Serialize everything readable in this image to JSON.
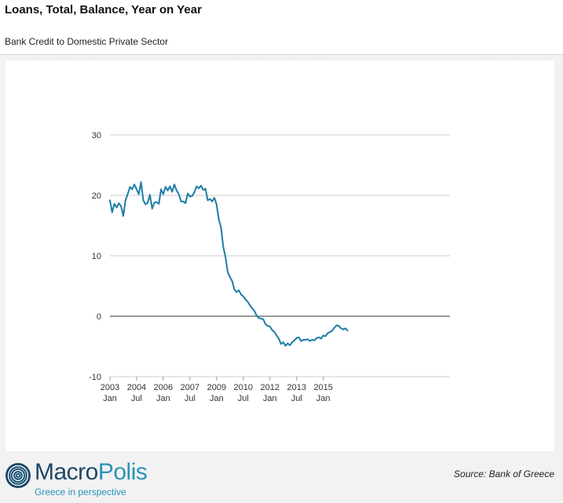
{
  "header": {
    "title": "Loans, Total, Balance, Year on Year",
    "subtitle": "Bank Credit to Domestic Private Sector"
  },
  "footer": {
    "brand_first": "Macro",
    "brand_second": "Polis",
    "tagline": "Greece in perspective",
    "source": "Source: Bank of Greece"
  },
  "colors": {
    "series": "#1f7ca6",
    "grid": "#cccccc",
    "zero_line": "#333333",
    "brand_dark": "#1e4866",
    "brand_light": "#2a93b8"
  },
  "chart_data": {
    "type": "line",
    "title": "",
    "xlabel": "",
    "ylabel": "",
    "ylim": [
      -10,
      30
    ],
    "yticks": [
      30,
      20,
      10,
      0,
      -10
    ],
    "xlim": [
      "2003-01",
      "2015-10"
    ],
    "grid": true,
    "legend": false,
    "x_ticks": [
      {
        "date": "2003-01",
        "line1": "2003",
        "line2": "Jan"
      },
      {
        "date": "2004-01",
        "line1": "2004",
        "line2": "Jul"
      },
      {
        "date": "2005-01",
        "line1": "2006",
        "line2": "Jan"
      },
      {
        "date": "2006-01",
        "line1": "2007",
        "line2": "Jul"
      },
      {
        "date": "2007-01",
        "line1": "2009",
        "line2": "Jan"
      },
      {
        "date": "2008-01",
        "line1": "2010",
        "line2": "Jul"
      },
      {
        "date": "2009-01",
        "line1": "2012",
        "line2": "Jan"
      },
      {
        "date": "2010-01",
        "line1": "2013",
        "line2": "Jul"
      },
      {
        "date": "2011-01",
        "line1": "2015",
        "line2": "Jan"
      }
    ],
    "series": [
      {
        "name": "",
        "points": [
          [
            "2003-01",
            19.2
          ],
          [
            "2003-02",
            17.2
          ],
          [
            "2003-03",
            18.6
          ],
          [
            "2003-04",
            18.0
          ],
          [
            "2003-05",
            18.7
          ],
          [
            "2003-06",
            18.2
          ],
          [
            "2003-07",
            16.6
          ],
          [
            "2003-08",
            19.2
          ],
          [
            "2003-09",
            20.2
          ],
          [
            "2003-10",
            21.4
          ],
          [
            "2003-11",
            21.0
          ],
          [
            "2003-12",
            21.8
          ],
          [
            "2004-01",
            21.0
          ],
          [
            "2004-02",
            20.2
          ],
          [
            "2004-03",
            22.2
          ],
          [
            "2004-04",
            19.2
          ],
          [
            "2004-05",
            18.5
          ],
          [
            "2004-06",
            18.8
          ],
          [
            "2004-07",
            20.1
          ],
          [
            "2004-08",
            17.8
          ],
          [
            "2004-09",
            18.8
          ],
          [
            "2004-10",
            18.9
          ],
          [
            "2004-11",
            18.6
          ],
          [
            "2004-12",
            21.0
          ],
          [
            "2005-01",
            20.2
          ],
          [
            "2005-02",
            21.4
          ],
          [
            "2005-03",
            20.8
          ],
          [
            "2005-04",
            21.5
          ],
          [
            "2005-05",
            20.6
          ],
          [
            "2005-06",
            21.8
          ],
          [
            "2005-07",
            20.8
          ],
          [
            "2005-08",
            20.2
          ],
          [
            "2005-09",
            19.0
          ],
          [
            "2005-10",
            19.0
          ],
          [
            "2005-11",
            18.7
          ],
          [
            "2005-12",
            20.3
          ],
          [
            "2006-01",
            19.8
          ],
          [
            "2006-02",
            19.9
          ],
          [
            "2006-03",
            20.5
          ],
          [
            "2006-04",
            21.5
          ],
          [
            "2006-05",
            21.2
          ],
          [
            "2006-06",
            21.6
          ],
          [
            "2006-07",
            20.9
          ],
          [
            "2006-08",
            21.1
          ],
          [
            "2006-09",
            19.2
          ],
          [
            "2006-10",
            19.4
          ],
          [
            "2006-11",
            19.0
          ],
          [
            "2006-12",
            19.6
          ],
          [
            "2007-01",
            18.5
          ],
          [
            "2007-02",
            16.0
          ],
          [
            "2007-03",
            14.7
          ],
          [
            "2007-04",
            11.5
          ],
          [
            "2007-05",
            9.8
          ],
          [
            "2007-06",
            7.3
          ],
          [
            "2007-07",
            6.5
          ],
          [
            "2007-08",
            5.8
          ],
          [
            "2007-09",
            4.4
          ],
          [
            "2007-10",
            4.0
          ],
          [
            "2007-11",
            4.3
          ],
          [
            "2007-12",
            3.6
          ],
          [
            "2008-01",
            3.3
          ],
          [
            "2008-02",
            2.8
          ],
          [
            "2008-03",
            2.4
          ],
          [
            "2008-04",
            1.8
          ],
          [
            "2008-05",
            1.3
          ],
          [
            "2008-06",
            0.9
          ],
          [
            "2008-07",
            0.1
          ],
          [
            "2008-08",
            -0.3
          ],
          [
            "2008-09",
            -0.4
          ],
          [
            "2008-10",
            -0.5
          ],
          [
            "2008-11",
            -1.3
          ],
          [
            "2008-12",
            -1.6
          ],
          [
            "2009-01",
            -1.7
          ],
          [
            "2009-02",
            -2.3
          ],
          [
            "2009-03",
            -2.6
          ],
          [
            "2009-04",
            -3.2
          ],
          [
            "2009-05",
            -3.7
          ],
          [
            "2009-06",
            -4.6
          ],
          [
            "2009-07",
            -4.3
          ],
          [
            "2009-08",
            -4.9
          ],
          [
            "2009-09",
            -4.5
          ],
          [
            "2009-10",
            -4.8
          ],
          [
            "2009-11",
            -4.3
          ],
          [
            "2009-12",
            -4.0
          ],
          [
            "2010-01",
            -3.6
          ],
          [
            "2010-02",
            -3.5
          ],
          [
            "2010-03",
            -4.1
          ],
          [
            "2010-04",
            -3.9
          ],
          [
            "2010-05",
            -3.9
          ],
          [
            "2010-06",
            -3.8
          ],
          [
            "2010-07",
            -4.1
          ],
          [
            "2010-08",
            -3.9
          ],
          [
            "2010-09",
            -4.0
          ],
          [
            "2010-10",
            -3.6
          ],
          [
            "2010-11",
            -3.5
          ],
          [
            "2010-12",
            -3.7
          ],
          [
            "2011-01",
            -3.2
          ],
          [
            "2011-02",
            -3.3
          ],
          [
            "2011-03",
            -2.8
          ],
          [
            "2011-04",
            -2.6
          ],
          [
            "2011-05",
            -2.4
          ],
          [
            "2011-06",
            -1.9
          ],
          [
            "2011-07",
            -1.5
          ],
          [
            "2011-08",
            -1.6
          ],
          [
            "2011-09",
            -2.0
          ],
          [
            "2011-10",
            -2.2
          ],
          [
            "2011-11",
            -2.0
          ],
          [
            "2011-12",
            -2.4
          ]
        ]
      }
    ]
  }
}
